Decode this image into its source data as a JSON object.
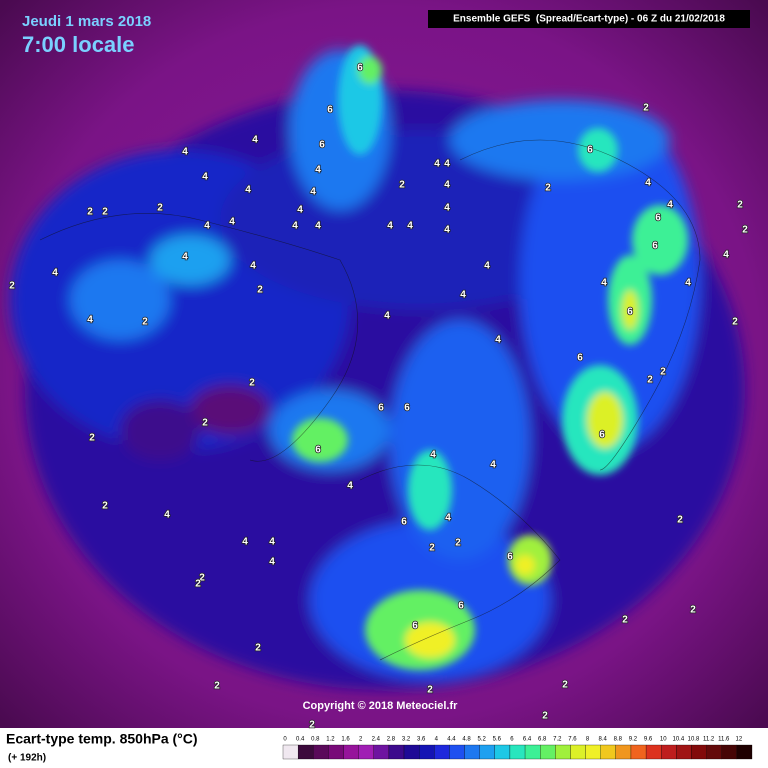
{
  "header": {
    "date": "Jeudi 1 mars 2018",
    "time": "7:00 locale",
    "model": "Ensemble GEFS  (Spread/Ecart-type) - 06 Z du 21/02/2018"
  },
  "copyright": "Copyright © 2018 Meteociel.fr",
  "legend": {
    "title": "Ecart-type temp. 850hPa (°C)",
    "lead": "(+ 192h)",
    "ticks": [
      0,
      0.4,
      0.8,
      1.2,
      1.6,
      2,
      2.4,
      2.8,
      3.2,
      3.6,
      4,
      4.4,
      4.8,
      5.2,
      5.6,
      6,
      6.4,
      6.8,
      7.2,
      7.6,
      8,
      8.4,
      8.8,
      9.2,
      9.6,
      10,
      10.4,
      10.8,
      11.2,
      11.6,
      12
    ],
    "colors": [
      "#f0e8f0",
      "#3c0a3c",
      "#5a0a5a",
      "#780a78",
      "#96149b",
      "#a01eb4",
      "#6e14a0",
      "#3c0a8c",
      "#1e0a96",
      "#1414b4",
      "#1e28dc",
      "#1e50f0",
      "#1e78f0",
      "#1ea0f0",
      "#1ec8e6",
      "#28e6be",
      "#3cf096",
      "#64f064",
      "#a0f03c",
      "#dcf028",
      "#f0f028",
      "#f0c81e",
      "#f0961e",
      "#f0641e",
      "#dc321e",
      "#be1e1e",
      "#a01414",
      "#820a0a",
      "#640a0a",
      "#460505",
      "#1e0000"
    ]
  },
  "map": {
    "contour_labels": [
      "6",
      "6",
      "6",
      "4",
      "4",
      "4",
      "4",
      "4",
      "4",
      "4",
      "4",
      "4",
      "4",
      "4",
      "4",
      "4",
      "4",
      "4",
      "2",
      "4",
      "4",
      "4",
      "4",
      "4",
      "4",
      "4",
      "4",
      "4",
      "4",
      "4",
      "6",
      "6",
      "6",
      "4",
      "4",
      "4",
      "4",
      "6",
      "2",
      "2",
      "6",
      "6",
      "6",
      "6",
      "6",
      "6",
      "4",
      "6",
      "6",
      "4",
      "4",
      "6",
      "2",
      "2",
      "2",
      "2",
      "2",
      "2",
      "2",
      "4",
      "4",
      "4",
      "4",
      "2",
      "2",
      "2",
      "2",
      "2",
      "2",
      "2",
      "2",
      "2",
      "2",
      "2",
      "2",
      "2",
      "2",
      "2",
      "2",
      "4",
      "4",
      "2",
      "2",
      "2",
      "2",
      "2"
    ]
  }
}
